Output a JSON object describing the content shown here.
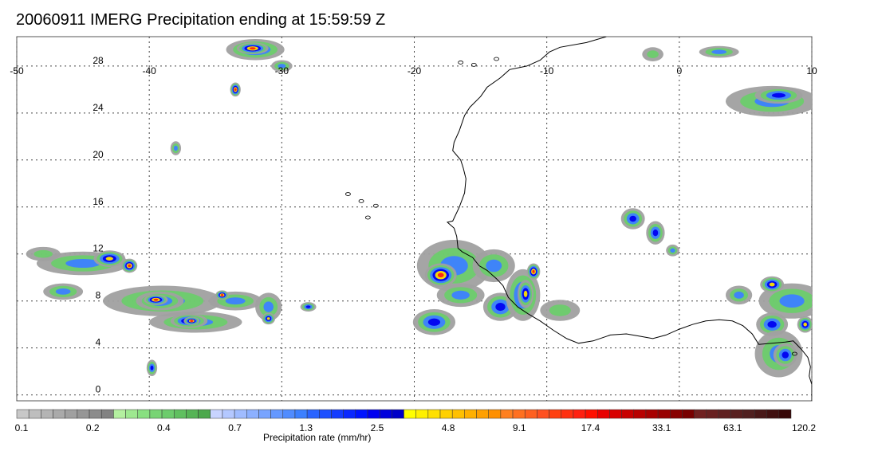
{
  "title": "20060911 IMERG Precipitation ending at 15:59:59 Z",
  "map": {
    "lon_range": [
      -50,
      10
    ],
    "lat_range": [
      -0.5,
      30.5
    ],
    "lon_ticks": [
      "-50",
      "-40",
      "-30",
      "-20",
      "-10",
      "0",
      "10"
    ],
    "lat_ticks": [
      "28",
      "24",
      "20",
      "16",
      "12",
      "8",
      "4",
      "0"
    ],
    "gridlines": true,
    "coastline_color": "#000000"
  },
  "colorbar": {
    "title": "Precipitation rate (mm/hr)",
    "tick_labels": [
      "0.1",
      "0.2",
      "0.4",
      "0.7",
      "1.3",
      "2.5",
      "4.8",
      "9.1",
      "17.4",
      "33.1",
      "63.1",
      "120.2"
    ],
    "colors": [
      "#c8c8c8",
      "#bebebe",
      "#b4b4b4",
      "#aaaaaa",
      "#a0a0a0",
      "#969696",
      "#8c8c8c",
      "#828282",
      "#b4f0a0",
      "#9ee890",
      "#88e080",
      "#78d474",
      "#6ccc6c",
      "#60c060",
      "#56b456",
      "#4ca84c",
      "#c8d4ff",
      "#b4c8ff",
      "#a0bcff",
      "#8cb0ff",
      "#78a4ff",
      "#6498ff",
      "#508cff",
      "#3c80ff",
      "#2a64ff",
      "#1e50ff",
      "#143cff",
      "#0a28ff",
      "#0014ff",
      "#0000f0",
      "#0000dc",
      "#0000c8",
      "#ffff00",
      "#fff000",
      "#ffe000",
      "#ffd000",
      "#ffc000",
      "#ffb000",
      "#ffa000",
      "#ff9000",
      "#ff8020",
      "#ff7020",
      "#ff6020",
      "#ff5020",
      "#ff4010",
      "#ff3010",
      "#ff2010",
      "#ff1000",
      "#e80000",
      "#d80000",
      "#c80000",
      "#b80000",
      "#a80000",
      "#980000",
      "#880000",
      "#780000",
      "#702020",
      "#682020",
      "#602020",
      "#582020",
      "#502020",
      "#481818",
      "#401010",
      "#380808"
    ]
  },
  "precip_cells": [
    {
      "lon": -45.0,
      "lat": 11.2,
      "rx": 3.5,
      "ry": 1.0,
      "level": 2
    },
    {
      "lon": -43.0,
      "lat": 11.6,
      "rx": 1.2,
      "ry": 0.7,
      "level": 4
    },
    {
      "lon": -41.5,
      "lat": 11.0,
      "rx": 0.6,
      "ry": 0.6,
      "level": 5
    },
    {
      "lon": -39.0,
      "lat": 8.0,
      "rx": 4.5,
      "ry": 1.3,
      "level": 2
    },
    {
      "lon": -39.2,
      "lat": 8.0,
      "rx": 1.8,
      "ry": 0.8,
      "level": 3
    },
    {
      "lon": -39.5,
      "lat": 8.1,
      "rx": 0.9,
      "ry": 0.45,
      "level": 5
    },
    {
      "lon": -36.5,
      "lat": 6.2,
      "rx": 3.5,
      "ry": 0.9,
      "level": 2
    },
    {
      "lon": -37.0,
      "lat": 6.3,
      "rx": 1.4,
      "ry": 0.6,
      "level": 4
    },
    {
      "lon": -36.8,
      "lat": 6.3,
      "rx": 0.6,
      "ry": 0.35,
      "level": 5
    },
    {
      "lon": -33.5,
      "lat": 8.0,
      "rx": 2.0,
      "ry": 0.8,
      "level": 2
    },
    {
      "lon": -34.5,
      "lat": 8.5,
      "rx": 0.5,
      "ry": 0.4,
      "level": 5
    },
    {
      "lon": -46.5,
      "lat": 8.8,
      "rx": 1.5,
      "ry": 0.7,
      "level": 2
    },
    {
      "lon": -48.0,
      "lat": 12.0,
      "rx": 1.3,
      "ry": 0.6,
      "level": 1
    },
    {
      "lon": -31.0,
      "lat": 7.5,
      "rx": 1.0,
      "ry": 1.2,
      "level": 2
    },
    {
      "lon": -31.0,
      "lat": 6.5,
      "rx": 0.5,
      "ry": 0.5,
      "level": 4
    },
    {
      "lon": -28.0,
      "lat": 7.5,
      "rx": 0.6,
      "ry": 0.4,
      "level": 3
    },
    {
      "lon": -39.8,
      "lat": 2.3,
      "rx": 0.4,
      "ry": 0.7,
      "level": 3
    },
    {
      "lon": -32.0,
      "lat": 29.4,
      "rx": 2.2,
      "ry": 0.9,
      "level": 3
    },
    {
      "lon": -32.2,
      "lat": 29.5,
      "rx": 1.2,
      "ry": 0.5,
      "level": 5
    },
    {
      "lon": -33.5,
      "lat": 26.0,
      "rx": 0.4,
      "ry": 0.6,
      "level": 5
    },
    {
      "lon": -30.0,
      "lat": 28.0,
      "rx": 0.8,
      "ry": 0.5,
      "level": 2
    },
    {
      "lon": -38.0,
      "lat": 21.0,
      "rx": 0.4,
      "ry": 0.6,
      "level": 2
    },
    {
      "lon": -17.0,
      "lat": 11.0,
      "rx": 2.8,
      "ry": 2.2,
      "level": 2
    },
    {
      "lon": -18.0,
      "lat": 10.2,
      "rx": 1.2,
      "ry": 1.0,
      "level": 5
    },
    {
      "lon": -16.5,
      "lat": 8.5,
      "rx": 1.8,
      "ry": 1.0,
      "level": 2
    },
    {
      "lon": -18.5,
      "lat": 6.2,
      "rx": 1.6,
      "ry": 1.1,
      "level": 3
    },
    {
      "lon": -14.0,
      "lat": 11.0,
      "rx": 1.6,
      "ry": 1.4,
      "level": 2
    },
    {
      "lon": -13.5,
      "lat": 7.5,
      "rx": 1.3,
      "ry": 1.2,
      "level": 3
    },
    {
      "lon": -11.8,
      "lat": 8.5,
      "rx": 1.3,
      "ry": 2.2,
      "level": 3
    },
    {
      "lon": -11.6,
      "lat": 8.6,
      "rx": 0.6,
      "ry": 1.2,
      "level": 4
    },
    {
      "lon": -11.0,
      "lat": 10.5,
      "rx": 0.5,
      "ry": 0.7,
      "level": 5
    },
    {
      "lon": -9.0,
      "lat": 7.2,
      "rx": 1.5,
      "ry": 0.9,
      "level": 1
    },
    {
      "lon": -3.5,
      "lat": 15.0,
      "rx": 0.9,
      "ry": 0.9,
      "level": 3
    },
    {
      "lon": -1.8,
      "lat": 13.8,
      "rx": 0.7,
      "ry": 1.0,
      "level": 3
    },
    {
      "lon": -0.5,
      "lat": 12.3,
      "rx": 0.5,
      "ry": 0.5,
      "level": 2
    },
    {
      "lon": 7.0,
      "lat": 25.0,
      "rx": 3.5,
      "ry": 1.3,
      "level": 2
    },
    {
      "lon": 7.5,
      "lat": 25.5,
      "rx": 1.8,
      "ry": 0.7,
      "level": 3
    },
    {
      "lon": 8.5,
      "lat": 8.0,
      "rx": 2.5,
      "ry": 1.5,
      "level": 2
    },
    {
      "lon": 7.0,
      "lat": 9.4,
      "rx": 0.9,
      "ry": 0.7,
      "level": 4
    },
    {
      "lon": 7.0,
      "lat": 6.0,
      "rx": 1.2,
      "ry": 1.0,
      "level": 3
    },
    {
      "lon": 7.5,
      "lat": 3.5,
      "rx": 1.8,
      "ry": 2.0,
      "level": 2
    },
    {
      "lon": 8.0,
      "lat": 3.4,
      "rx": 0.9,
      "ry": 1.0,
      "level": 3
    },
    {
      "lon": 9.5,
      "lat": 6.0,
      "rx": 0.6,
      "ry": 0.7,
      "level": 4
    },
    {
      "lon": 4.5,
      "lat": 8.5,
      "rx": 1.0,
      "ry": 0.8,
      "level": 2
    },
    {
      "lon": 3.0,
      "lat": 29.2,
      "rx": 1.5,
      "ry": 0.5,
      "level": 2
    },
    {
      "lon": -2.0,
      "lat": 29.0,
      "rx": 0.8,
      "ry": 0.6,
      "level": 1
    }
  ]
}
